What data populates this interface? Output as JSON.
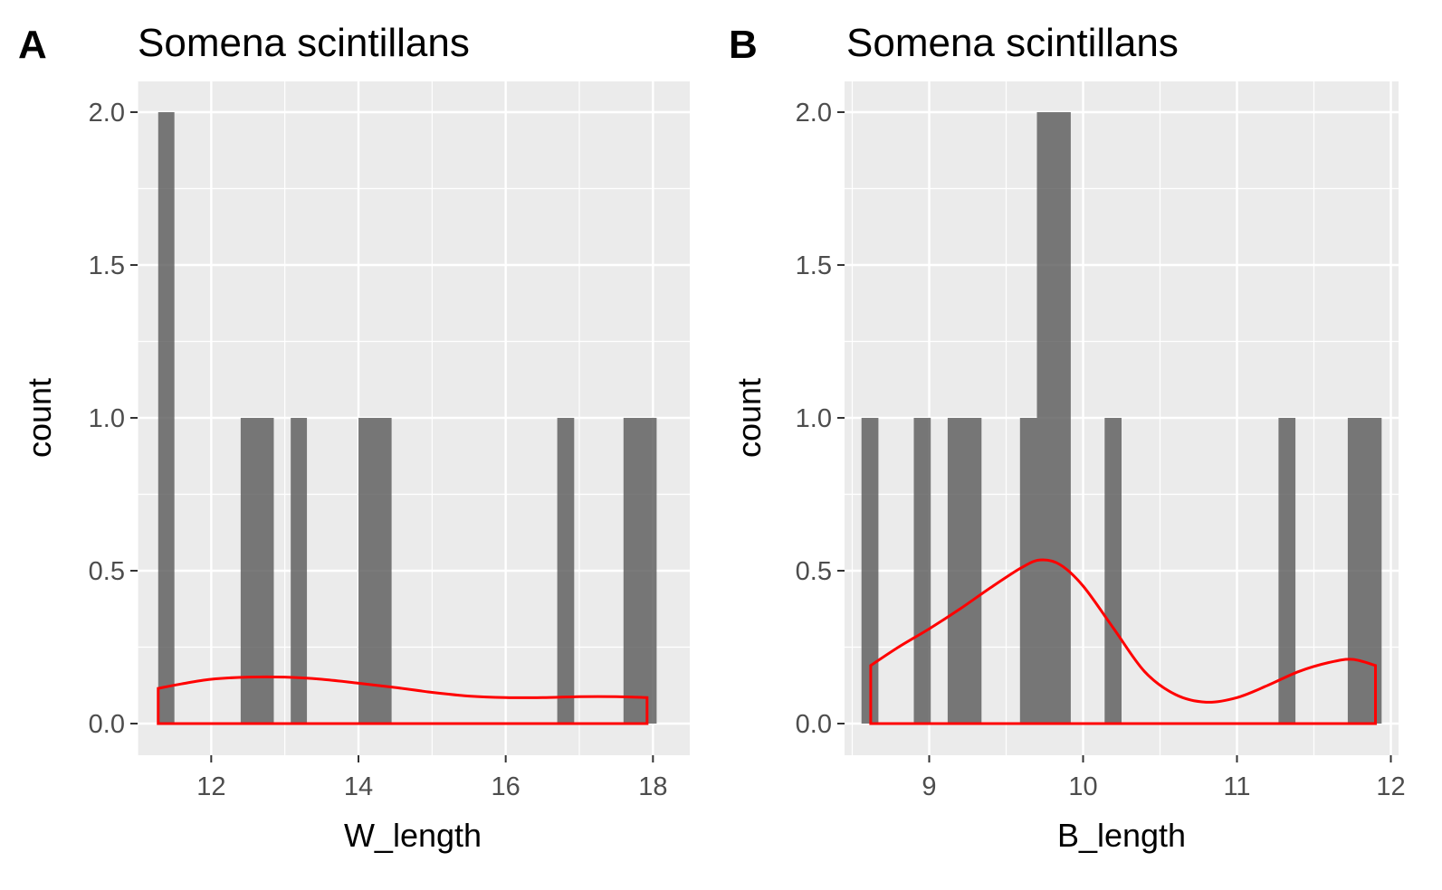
{
  "figure": {
    "panel_labels": [
      "A",
      "B"
    ]
  },
  "chart_data": [
    {
      "type": "bar",
      "panel": "A",
      "title": "Somena scintillans",
      "xlabel": "W_length",
      "ylabel": "count",
      "xlim": [
        11.0,
        18.5
      ],
      "ylim": [
        0,
        2.0
      ],
      "x_ticks": [
        "12",
        "14",
        "16",
        "18"
      ],
      "x_tick_values": [
        12,
        14,
        16,
        18
      ],
      "y_ticks": [
        "0.0",
        "0.5",
        "1.0",
        "1.5",
        "2.0"
      ],
      "y_tick_values": [
        0,
        0.5,
        1.0,
        1.5,
        2.0
      ],
      "bin_width": 0.225,
      "bars": [
        {
          "start": 11.28,
          "end": 11.5,
          "count": 2
        },
        {
          "start": 12.4,
          "end": 12.85,
          "count": 1
        },
        {
          "start": 13.08,
          "end": 13.3,
          "count": 1
        },
        {
          "start": 14.0,
          "end": 14.45,
          "count": 1
        },
        {
          "start": 16.7,
          "end": 16.93,
          "count": 1
        },
        {
          "start": 17.6,
          "end": 18.05,
          "count": 1
        }
      ],
      "density": {
        "color": "#ff0000",
        "x": [
          11.28,
          11.6,
          12.0,
          12.5,
          13.0,
          13.5,
          14.0,
          14.5,
          15.0,
          15.5,
          16.0,
          16.5,
          17.0,
          17.5,
          17.92
        ],
        "y": [
          0.115,
          0.13,
          0.145,
          0.152,
          0.152,
          0.145,
          0.132,
          0.118,
          0.102,
          0.09,
          0.085,
          0.085,
          0.088,
          0.088,
          0.085
        ]
      },
      "grid": true
    },
    {
      "type": "bar",
      "panel": "B",
      "title": "Somena scintillans",
      "xlabel": "B_length",
      "ylabel": "count",
      "xlim": [
        8.45,
        12.05
      ],
      "ylim": [
        0,
        2.0
      ],
      "x_ticks": [
        "9",
        "10",
        "11",
        "12"
      ],
      "x_tick_values": [
        9,
        10,
        11,
        12
      ],
      "y_ticks": [
        "0.0",
        "0.5",
        "1.0",
        "1.5",
        "2.0"
      ],
      "y_tick_values": [
        0,
        0.5,
        1.0,
        1.5,
        2.0
      ],
      "bin_width": 0.11,
      "bars": [
        {
          "start": 8.56,
          "end": 8.67,
          "count": 1
        },
        {
          "start": 8.9,
          "end": 9.01,
          "count": 1
        },
        {
          "start": 9.12,
          "end": 9.34,
          "count": 1
        },
        {
          "start": 9.59,
          "end": 9.7,
          "count": 1
        },
        {
          "start": 9.7,
          "end": 9.92,
          "count": 2
        },
        {
          "start": 10.14,
          "end": 10.25,
          "count": 1
        },
        {
          "start": 11.27,
          "end": 11.38,
          "count": 1
        },
        {
          "start": 11.72,
          "end": 11.94,
          "count": 1
        }
      ],
      "density": {
        "color": "#ff0000",
        "x": [
          8.62,
          8.8,
          9.0,
          9.2,
          9.4,
          9.6,
          9.72,
          9.85,
          10.0,
          10.2,
          10.4,
          10.6,
          10.8,
          11.0,
          11.2,
          11.4,
          11.6,
          11.75,
          11.9
        ],
        "y": [
          0.19,
          0.25,
          0.31,
          0.375,
          0.445,
          0.51,
          0.535,
          0.52,
          0.45,
          0.31,
          0.17,
          0.095,
          0.07,
          0.085,
          0.125,
          0.17,
          0.2,
          0.21,
          0.19
        ]
      },
      "grid": true
    }
  ]
}
